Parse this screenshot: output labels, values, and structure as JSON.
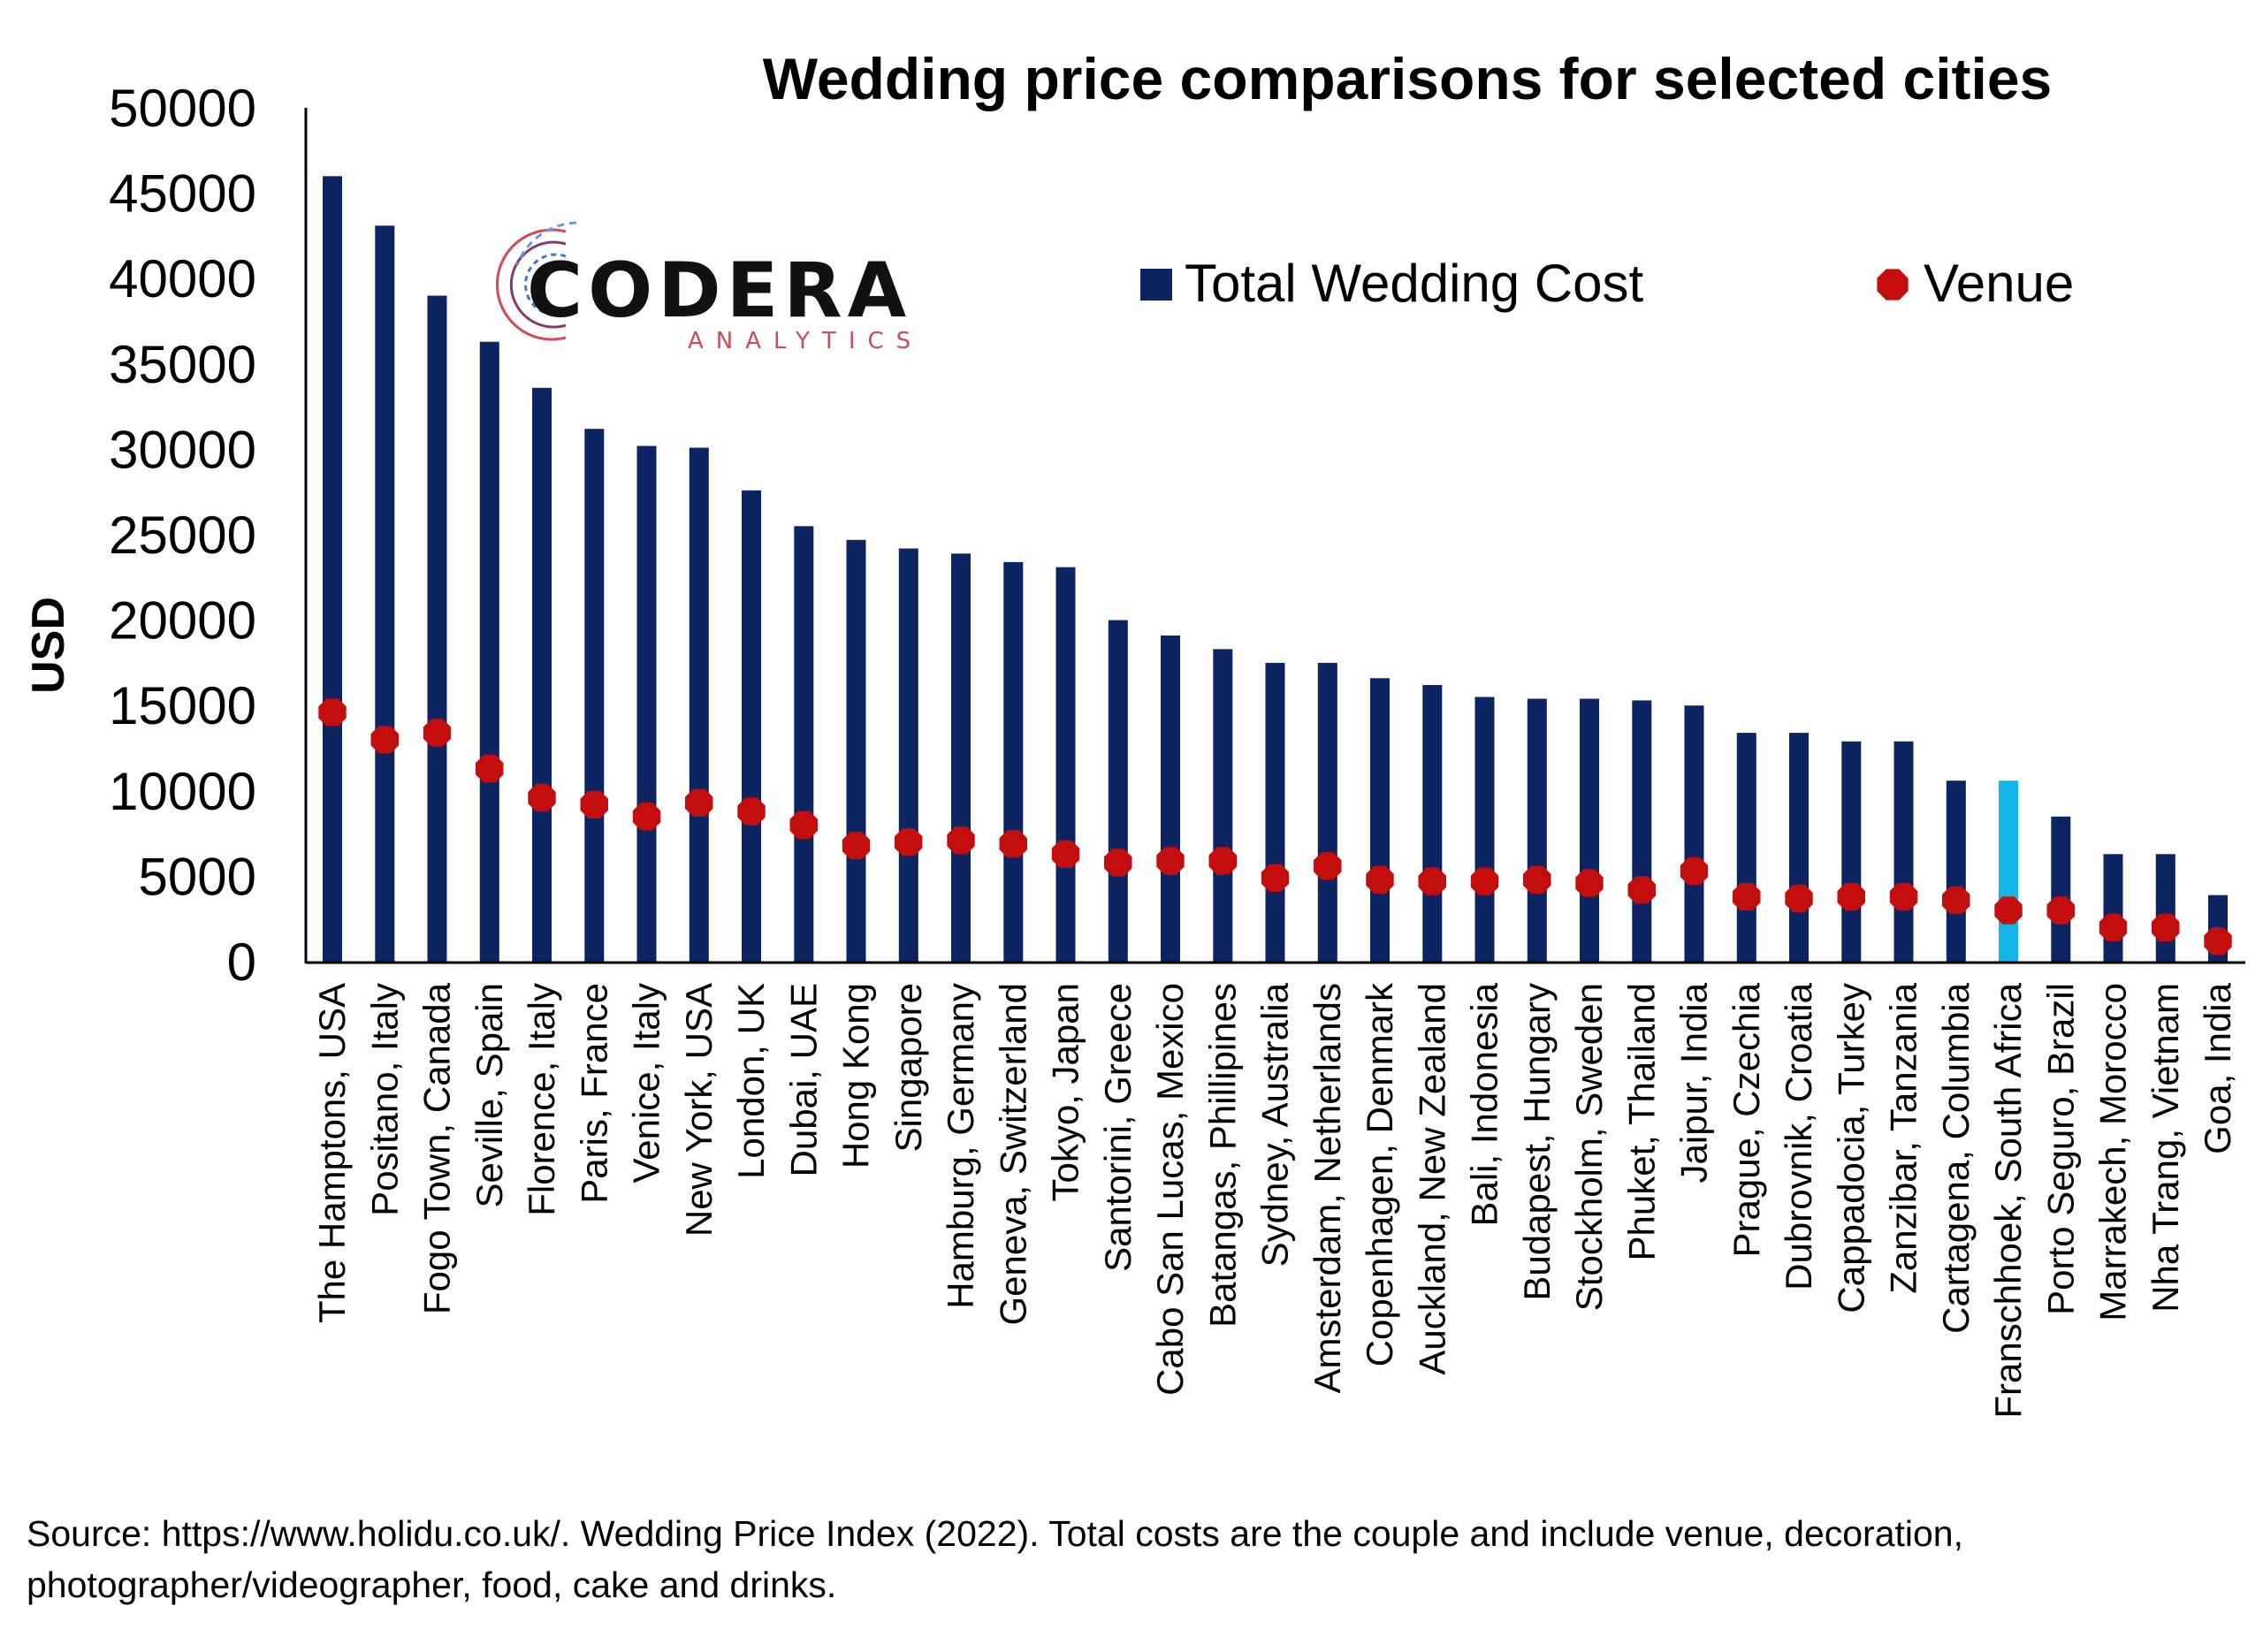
{
  "colors": {
    "bar": "#0c2461",
    "bar_highlight": "#15b4ea",
    "venue": "#c40d0d",
    "axis": "#000000",
    "logo_dark": "#111111",
    "logo_accent": "#d04a5a"
  },
  "logo": {
    "name": "CODERA",
    "sub": "ANALYTICS"
  },
  "source_note": "Source: https://www.holidu.co.uk/. Wedding Price Index (2022). Total costs are the couple and include venue, decoration, photographer/videographer, food, cake and drinks.",
  "chart_data": {
    "type": "bar",
    "title": "Wedding price comparisons for selected cities",
    "xlabel": "",
    "ylabel": "USD",
    "ylim": [
      0,
      50000
    ],
    "yticks": [
      0,
      5000,
      10000,
      15000,
      20000,
      25000,
      30000,
      35000,
      40000,
      45000,
      50000
    ],
    "grid": false,
    "legend_position": "top-right",
    "highlight_category": "Franschhoek, South Africa",
    "categories": [
      "The Hamptons, USA",
      "Positano, Italy",
      "Fogo Town, Canada",
      "Seville, Spain",
      "Florence, Italy",
      "Paris, France",
      "Venice, Italy",
      "New York, USA",
      "London, UK",
      "Dubai, UAE",
      "Hong Kong",
      "Singapore",
      "Hamburg, Germany",
      "Geneva, Switzerland",
      "Tokyo, Japan",
      "Santorini, Greece",
      "Cabo San Lucas, Mexico",
      "Batangas, Phillipines",
      "Sydney, Australia",
      "Amsterdam, Netherlands",
      "Copenhagen, Denmark",
      "Auckland, New Zealand",
      "Bali, Indonesia",
      "Budapest, Hungary",
      "Stockholm, Sweden",
      "Phuket, Thailand",
      "Jaipur, India",
      "Prague, Czechia",
      "Dubrovnik, Croatia",
      "Cappadocia, Turkey",
      "Zanzibar, Tanzania",
      "Cartagena, Columbia",
      "Franschhoek, South Africa",
      "Porto Seguro, Brazil",
      "Marrakech, Morocco",
      "Nha Trang, Vietnam",
      "Goa, India"
    ],
    "series": [
      {
        "name": "Total Wedding Cost",
        "kind": "bar",
        "values": [
          46000,
          43100,
          39000,
          36300,
          33600,
          31200,
          30200,
          30100,
          27600,
          25500,
          24700,
          24200,
          23900,
          23400,
          23100,
          20000,
          19100,
          18300,
          17500,
          17500,
          16600,
          16200,
          15500,
          15400,
          15400,
          15300,
          15000,
          13400,
          13400,
          12900,
          12900,
          10600,
          10600,
          8500,
          6300,
          6300,
          3900
        ]
      },
      {
        "name": "Venue",
        "kind": "marker",
        "values": [
          14600,
          13000,
          13400,
          11300,
          9600,
          9200,
          8500,
          9300,
          8800,
          8000,
          6800,
          7000,
          7100,
          6900,
          6300,
          5800,
          5900,
          5900,
          4900,
          5600,
          4800,
          4700,
          4700,
          4800,
          4600,
          4200,
          5300,
          3800,
          3700,
          3800,
          3800,
          3600,
          3000,
          3000,
          2000,
          2000,
          1200
        ]
      }
    ]
  }
}
